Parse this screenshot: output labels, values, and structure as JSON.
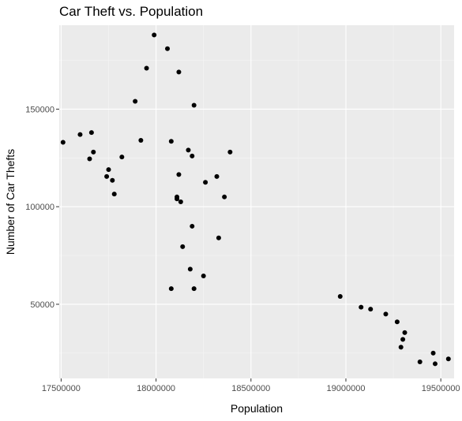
{
  "colors": {
    "panel_background": "#ebebeb",
    "grid_major": "#ffffff",
    "grid_minor": "#f5f5f5",
    "point": "#000000",
    "tick_text": "#4d4d4d"
  },
  "chart_data": {
    "type": "scatter",
    "title": "Car Theft vs. Population",
    "xlabel": "Population",
    "ylabel": "Number of Car Thefts",
    "xlim": [
      17490000,
      19570000
    ],
    "ylim": [
      12000,
      193000
    ],
    "grid": true,
    "x_ticks": [
      17500000,
      18000000,
      18500000,
      19000000,
      19500000
    ],
    "x_tick_labels": [
      "17500000",
      "18000000",
      "18500000",
      "19000000",
      "19500000"
    ],
    "y_ticks": [
      50000,
      100000,
      150000
    ],
    "y_tick_labels": [
      "50000",
      "100000",
      "150000"
    ],
    "x": [
      17510000,
      17600000,
      17650000,
      17660000,
      17670000,
      17740000,
      17750000,
      17770000,
      17780000,
      17820000,
      17890000,
      17920000,
      17950000,
      17990000,
      18060000,
      18080000,
      18080000,
      18110000,
      18110000,
      18120000,
      18120000,
      18130000,
      18140000,
      18170000,
      18180000,
      18190000,
      18190000,
      18200000,
      18200000,
      18250000,
      18260000,
      18320000,
      18330000,
      18360000,
      18390000,
      18970000,
      19080000,
      19130000,
      19210000,
      19270000,
      19290000,
      19300000,
      19310000,
      19390000,
      19460000,
      19470000,
      19540000
    ],
    "y": [
      133000,
      137000,
      124500,
      138000,
      128000,
      115500,
      119000,
      113500,
      106500,
      125500,
      154000,
      134000,
      171000,
      188000,
      181000,
      133500,
      58000,
      104000,
      105000,
      116500,
      169000,
      102500,
      79500,
      129000,
      68000,
      90000,
      126000,
      152000,
      58000,
      64500,
      112500,
      115500,
      84000,
      105000,
      128000,
      54000,
      48500,
      47500,
      45000,
      41000,
      28000,
      32000,
      35500,
      20500,
      25000,
      19500,
      22000
    ]
  }
}
